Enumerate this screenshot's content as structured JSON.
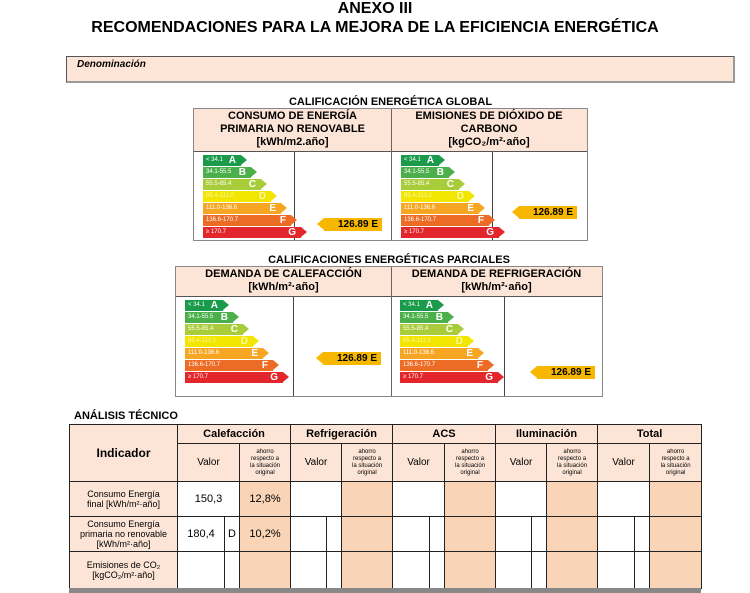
{
  "header": {
    "title": "ANEXO III",
    "subtitle": "RECOMENDACIONES PARA LA MEJORA DE LA EFICIENCIA ENERGÉTICA"
  },
  "denominacion": {
    "label": "Denominación",
    "value": ""
  },
  "scale": [
    {
      "range": "< 34.1",
      "letter": "A",
      "color": "#1a9a4a"
    },
    {
      "range": "34.1-55.5",
      "letter": "B",
      "color": "#4bb04b"
    },
    {
      "range": "55.5-85.4",
      "letter": "C",
      "color": "#a9cc3a"
    },
    {
      "range": "85.4-111.0",
      "letter": "D",
      "color": "#f2e600"
    },
    {
      "range": "111.0-136.6",
      "letter": "E",
      "color": "#f6a623"
    },
    {
      "range": "136.6-170.7",
      "letter": "F",
      "color": "#ec6b25"
    },
    {
      "range": "≥ 170.7",
      "letter": "G",
      "color": "#e3262b"
    }
  ],
  "global": {
    "title": "CALIFICACIÓN ENERGÉTICA GLOBAL",
    "consumo": {
      "header_l1": "CONSUMO DE ENERGÍA",
      "header_l2": "PRIMARIA NO RENOVABLE",
      "header_l3": "[kWh/m2.año]",
      "indicator": "126.89 E"
    },
    "emisiones": {
      "header_l1": "EMISIONES DE DIÓXIDO DE",
      "header_l2": "CARBONO",
      "header_l3": "[kgCO₂/m²·año]",
      "indicator": "126.89 E"
    }
  },
  "parciales": {
    "title": "CALIFICACIONES ENERGÉTICAS PARCIALES",
    "calefaccion": {
      "header_l1": "DEMANDA DE CALEFACCIÓN",
      "header_l2": "[kWh/m²·año]",
      "indicator": "126.89 E"
    },
    "refrigeracion": {
      "header_l1": "DEMANDA DE REFRIGERACIÓN",
      "header_l2": "[kWh/m²·año]",
      "indicator": "126.89 E"
    }
  },
  "analisis": {
    "title": "ANÁLISIS TÉCNICO",
    "indicator_header": "Indicador",
    "groups": [
      "Calefacción",
      "Refrigeración",
      "ACS",
      "Iluminación",
      "Total"
    ],
    "valor_label": "Valor",
    "ahorro_label_l1": "ahorro",
    "ahorro_label_l2": "respecto a",
    "ahorro_label_l3": "la situación",
    "ahorro_label_l4": "original",
    "rows": [
      {
        "label_l1": "Consumo Energía",
        "label_l2": "final [kWh/m²·año]",
        "label_l3": "",
        "calef_valor": "150,3",
        "calef_letter": "",
        "calef_ahorro": "12,8%"
      },
      {
        "label_l1": "Consumo Energía",
        "label_l2": "primaria no renovable",
        "label_l3": "[kWh/m²·año]",
        "calef_valor": "180,4",
        "calef_letter": "D",
        "calef_ahorro": "10,2%"
      },
      {
        "label_l1": "Emisiones de CO₂",
        "label_l2": "[kgCO₂/m²·año]",
        "label_l3": "",
        "calef_valor": "",
        "calef_letter": "",
        "calef_ahorro": ""
      }
    ]
  }
}
